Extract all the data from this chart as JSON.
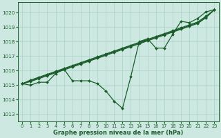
{
  "bg_color": "#cce8e0",
  "grid_color": "#b0d4cc",
  "line_color": "#1a5c2a",
  "marker": "D",
  "markersize": 2.0,
  "linewidth": 0.9,
  "xlabel": "Graphe pression niveau de la mer (hPa)",
  "xlim": [
    -0.5,
    23.5
  ],
  "ylim": [
    1012.5,
    1020.7
  ],
  "yticks": [
    1013,
    1014,
    1015,
    1016,
    1017,
    1018,
    1019,
    1020
  ],
  "xticks": [
    0,
    1,
    2,
    3,
    4,
    5,
    6,
    7,
    8,
    9,
    10,
    11,
    12,
    13,
    14,
    15,
    16,
    17,
    18,
    19,
    20,
    21,
    22,
    23
  ],
  "series": [
    [
      1015.1,
      1015.0,
      1015.2,
      1015.2,
      1015.8,
      1016.1,
      1015.3,
      1015.3,
      1015.3,
      1015.1,
      1014.6,
      1013.9,
      1013.4,
      1015.6,
      1018.0,
      1018.2,
      1017.55,
      1017.55,
      1018.5,
      1019.4,
      1019.3,
      1019.6,
      1020.05,
      1020.2
    ],
    [
      1015.1,
      1015.25,
      1015.45,
      1015.65,
      1015.85,
      1016.05,
      1016.25,
      1016.45,
      1016.65,
      1016.85,
      1017.05,
      1017.25,
      1017.45,
      1017.65,
      1017.85,
      1018.05,
      1018.25,
      1018.45,
      1018.65,
      1018.85,
      1019.05,
      1019.25,
      1019.65,
      1020.2
    ],
    [
      1015.1,
      1015.3,
      1015.5,
      1015.7,
      1015.9,
      1016.1,
      1016.3,
      1016.5,
      1016.7,
      1016.9,
      1017.1,
      1017.3,
      1017.5,
      1017.7,
      1017.9,
      1018.1,
      1018.3,
      1018.5,
      1018.7,
      1018.9,
      1019.1,
      1019.3,
      1019.7,
      1020.2
    ],
    [
      1015.1,
      1015.35,
      1015.55,
      1015.75,
      1015.95,
      1016.15,
      1016.35,
      1016.55,
      1016.75,
      1016.95,
      1017.15,
      1017.35,
      1017.55,
      1017.75,
      1017.95,
      1018.15,
      1018.35,
      1018.55,
      1018.75,
      1018.95,
      1019.15,
      1019.35,
      1019.75,
      1020.2
    ]
  ]
}
